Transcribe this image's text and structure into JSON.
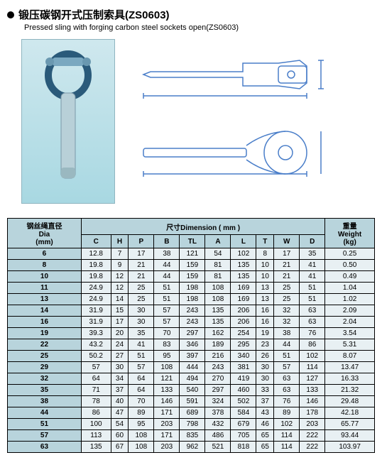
{
  "title_cn": "锻压碳钢开式压制索具(ZS0603)",
  "title_en": "Pressed sling with forging carbon steel sockets open(ZS0603)",
  "table": {
    "header_group_dia_cn": "钢丝绳直径",
    "header_group_dia_en": "Dia",
    "header_group_dia_unit": "(mm)",
    "header_group_dim_cn": "尺寸",
    "header_group_dim_en": "Dimension ( mm )",
    "header_group_wt_cn": "重量",
    "header_group_wt_en": "Weight",
    "header_group_wt_unit": "(kg)",
    "cols": [
      "C",
      "H",
      "P",
      "B",
      "TL",
      "A",
      "L",
      "T",
      "W",
      "D"
    ],
    "rows": [
      {
        "dia": "6",
        "c": "12.8",
        "h": "7",
        "p": "17",
        "b": "38",
        "tl": "121",
        "a": "54",
        "l": "102",
        "t": "8",
        "w": "17",
        "d": "35",
        "wt": "0.25"
      },
      {
        "dia": "8",
        "c": "19.8",
        "h": "9",
        "p": "21",
        "b": "44",
        "tl": "159",
        "a": "81",
        "l": "135",
        "t": "10",
        "w": "21",
        "d": "41",
        "wt": "0.50"
      },
      {
        "dia": "10",
        "c": "19.8",
        "h": "12",
        "p": "21",
        "b": "44",
        "tl": "159",
        "a": "81",
        "l": "135",
        "t": "10",
        "w": "21",
        "d": "41",
        "wt": "0.49"
      },
      {
        "dia": "11",
        "c": "24.9",
        "h": "12",
        "p": "25",
        "b": "51",
        "tl": "198",
        "a": "108",
        "l": "169",
        "t": "13",
        "w": "25",
        "d": "51",
        "wt": "1.04"
      },
      {
        "dia": "13",
        "c": "24.9",
        "h": "14",
        "p": "25",
        "b": "51",
        "tl": "198",
        "a": "108",
        "l": "169",
        "t": "13",
        "w": "25",
        "d": "51",
        "wt": "1.02"
      },
      {
        "dia": "14",
        "c": "31.9",
        "h": "15",
        "p": "30",
        "b": "57",
        "tl": "243",
        "a": "135",
        "l": "206",
        "t": "16",
        "w": "32",
        "d": "63",
        "wt": "2.09"
      },
      {
        "dia": "16",
        "c": "31.9",
        "h": "17",
        "p": "30",
        "b": "57",
        "tl": "243",
        "a": "135",
        "l": "206",
        "t": "16",
        "w": "32",
        "d": "63",
        "wt": "2.04"
      },
      {
        "dia": "19",
        "c": "39.3",
        "h": "20",
        "p": "35",
        "b": "70",
        "tl": "297",
        "a": "162",
        "l": "254",
        "t": "19",
        "w": "38",
        "d": "76",
        "wt": "3.54"
      },
      {
        "dia": "22",
        "c": "43.2",
        "h": "24",
        "p": "41",
        "b": "83",
        "tl": "346",
        "a": "189",
        "l": "295",
        "t": "23",
        "w": "44",
        "d": "86",
        "wt": "5.31"
      },
      {
        "dia": "25",
        "c": "50.2",
        "h": "27",
        "p": "51",
        "b": "95",
        "tl": "397",
        "a": "216",
        "l": "340",
        "t": "26",
        "w": "51",
        "d": "102",
        "wt": "8.07"
      },
      {
        "dia": "29",
        "c": "57",
        "h": "30",
        "p": "57",
        "b": "108",
        "tl": "444",
        "a": "243",
        "l": "381",
        "t": "30",
        "w": "57",
        "d": "114",
        "wt": "13.47"
      },
      {
        "dia": "32",
        "c": "64",
        "h": "34",
        "p": "64",
        "b": "121",
        "tl": "494",
        "a": "270",
        "l": "419",
        "t": "30",
        "w": "63",
        "d": "127",
        "wt": "16.33"
      },
      {
        "dia": "35",
        "c": "71",
        "h": "37",
        "p": "64",
        "b": "133",
        "tl": "540",
        "a": "297",
        "l": "460",
        "t": "33",
        "w": "63",
        "d": "133",
        "wt": "21.32"
      },
      {
        "dia": "38",
        "c": "78",
        "h": "40",
        "p": "70",
        "b": "146",
        "tl": "591",
        "a": "324",
        "l": "502",
        "t": "37",
        "w": "76",
        "d": "146",
        "wt": "29.48"
      },
      {
        "dia": "44",
        "c": "86",
        "h": "47",
        "p": "89",
        "b": "171",
        "tl": "689",
        "a": "378",
        "l": "584",
        "t": "43",
        "w": "89",
        "d": "178",
        "wt": "42.18"
      },
      {
        "dia": "51",
        "c": "100",
        "h": "54",
        "p": "95",
        "b": "203",
        "tl": "798",
        "a": "432",
        "l": "679",
        "t": "46",
        "w": "102",
        "d": "203",
        "wt": "65.77"
      },
      {
        "dia": "57",
        "c": "113",
        "h": "60",
        "p": "108",
        "b": "171",
        "tl": "835",
        "a": "486",
        "l": "705",
        "t": "65",
        "w": "114",
        "d": "222",
        "wt": "93.44"
      },
      {
        "dia": "63",
        "c": "135",
        "h": "67",
        "p": "108",
        "b": "203",
        "tl": "962",
        "a": "521",
        "l": "818",
        "t": "65",
        "w": "114",
        "d": "222",
        "wt": "103.97"
      }
    ]
  },
  "colors": {
    "header_bg": "#b8d4dc",
    "cell_bg": "#e8f0f3",
    "photo_bg_top": "#cfe8ee",
    "photo_bg_bot": "#a8d8e2",
    "drawing_stroke": "#4a7ec9"
  }
}
